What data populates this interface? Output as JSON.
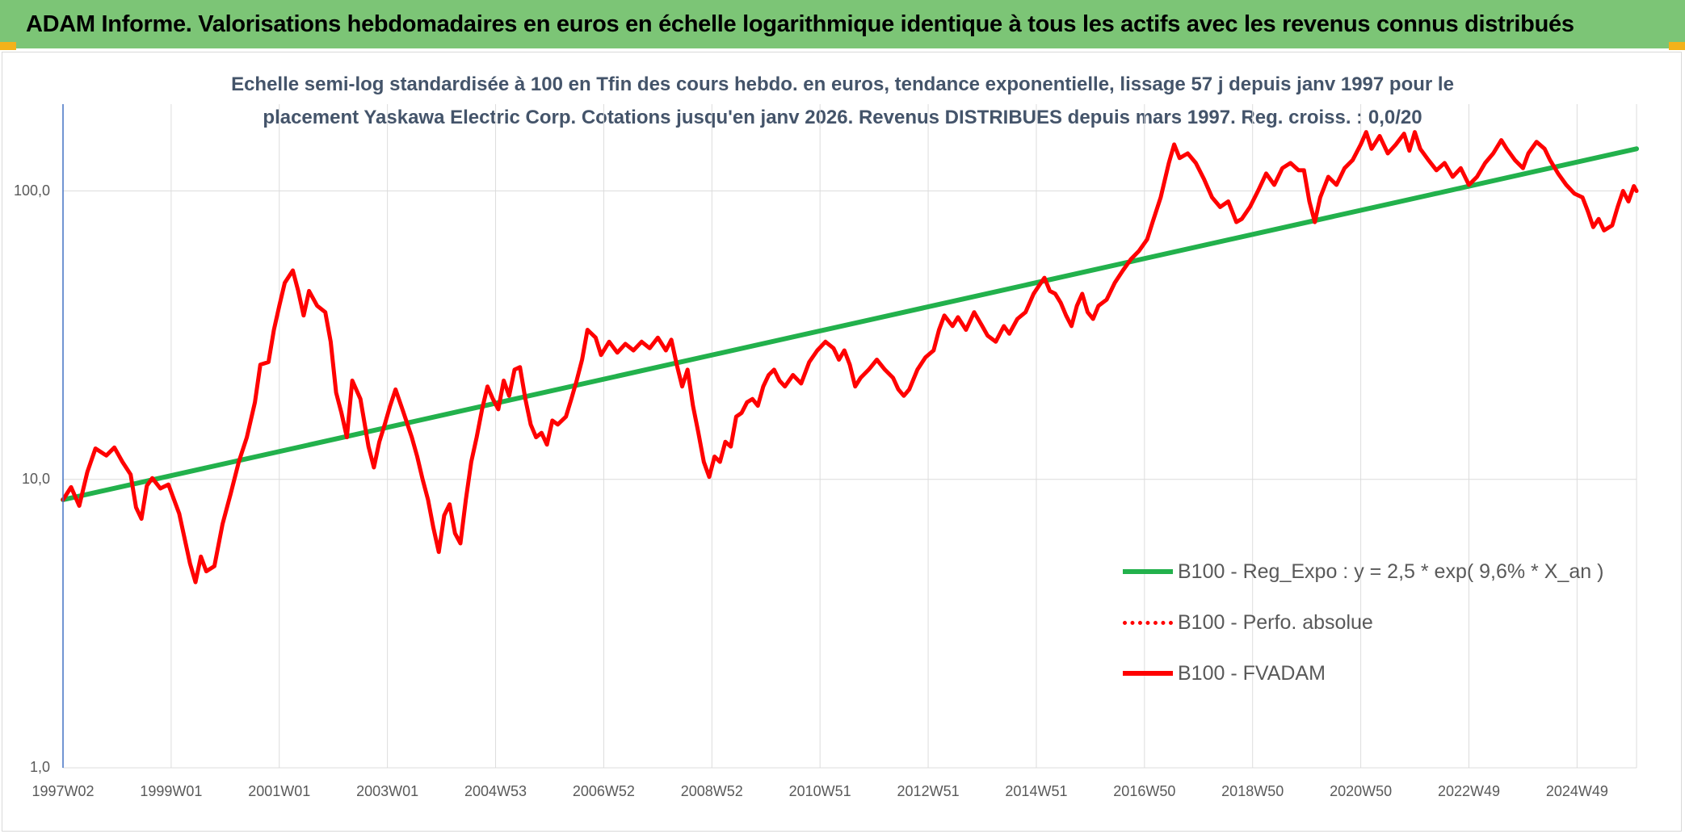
{
  "header": {
    "title": "ADAM Informe. Valorisations hebdomadaires en euros en échelle logarithmique identique à tous les actifs avec les revenus connus distribués"
  },
  "colors": {
    "banner": "#7cc576",
    "trend": "#22b14c",
    "series": "#ff0000",
    "corner": "#f3b21a"
  },
  "chart_data": {
    "type": "line",
    "title_lines": [
      "Echelle semi-log standardisée à 100 en Tfin des cours hebdo. en euros, tendance exponentielle, lissage 57 j depuis janv 1997 pour le",
      "placement Yaskawa Electric Corp. Cotations jusqu'en janv 2026. Revenus DISTRIBUES depuis mars 1997. Reg. croiss. : 0,0/20"
    ],
    "yscale": "log",
    "ylim": [
      1,
      200
    ],
    "yticks": [
      {
        "value": 1,
        "label": "1,0"
      },
      {
        "value": 10,
        "label": "10,0"
      },
      {
        "value": 100,
        "label": "100,0"
      }
    ],
    "xlim": [
      1997.0,
      2026.1
    ],
    "xticks": [
      {
        "x": 1997.0,
        "label": "1997W02"
      },
      {
        "x": 1999.0,
        "label": "1999W01"
      },
      {
        "x": 2001.0,
        "label": "2001W01"
      },
      {
        "x": 2003.0,
        "label": "2003W01"
      },
      {
        "x": 2005.0,
        "label": "2004W53"
      },
      {
        "x": 2007.0,
        "label": "2006W52"
      },
      {
        "x": 2009.0,
        "label": "2008W52"
      },
      {
        "x": 2011.0,
        "label": "2010W51"
      },
      {
        "x": 2013.0,
        "label": "2012W51"
      },
      {
        "x": 2015.0,
        "label": "2014W51"
      },
      {
        "x": 2017.0,
        "label": "2016W50"
      },
      {
        "x": 2019.0,
        "label": "2018W50"
      },
      {
        "x": 2021.0,
        "label": "2020W50"
      },
      {
        "x": 2023.0,
        "label": "2022W49"
      },
      {
        "x": 2025.0,
        "label": "2024W49"
      }
    ],
    "grid": true,
    "legend_position": "bottom-right",
    "series": [
      {
        "name": "B100 - Reg_Expo : y = 2,5 * exp( 9,6% *  X_an )",
        "style": "solid",
        "color": "#22b14c",
        "points": [
          [
            1997.0,
            8.5
          ],
          [
            2026.1,
            140
          ]
        ]
      },
      {
        "name": "B100 - Perfo. absolue",
        "style": "dotted",
        "color": "#ff0000",
        "points": []
      },
      {
        "name": "B100 - FVADAM",
        "style": "solid",
        "color": "#ff0000",
        "points": [
          [
            1997.0,
            8.5
          ],
          [
            1997.15,
            9.4
          ],
          [
            1997.3,
            8.1
          ],
          [
            1997.45,
            10.6
          ],
          [
            1997.6,
            12.8
          ],
          [
            1997.8,
            12.1
          ],
          [
            1997.95,
            12.9
          ],
          [
            1998.1,
            11.5
          ],
          [
            1998.25,
            10.4
          ],
          [
            1998.35,
            8.0
          ],
          [
            1998.45,
            7.3
          ],
          [
            1998.55,
            9.5
          ],
          [
            1998.65,
            10.1
          ],
          [
            1998.8,
            9.3
          ],
          [
            1998.95,
            9.6
          ],
          [
            1999.15,
            7.6
          ],
          [
            1999.35,
            5.1
          ],
          [
            1999.45,
            4.4
          ],
          [
            1999.55,
            5.4
          ],
          [
            1999.65,
            4.8
          ],
          [
            1999.8,
            5.0
          ],
          [
            1999.95,
            7.0
          ],
          [
            2000.1,
            8.9
          ],
          [
            2000.25,
            11.5
          ],
          [
            2000.4,
            14.0
          ],
          [
            2000.55,
            18.5
          ],
          [
            2000.65,
            25.0
          ],
          [
            2000.8,
            25.5
          ],
          [
            2000.9,
            33.0
          ],
          [
            2001.0,
            40.0
          ],
          [
            2001.1,
            48.0
          ],
          [
            2001.25,
            53.0
          ],
          [
            2001.35,
            45.0
          ],
          [
            2001.45,
            37.0
          ],
          [
            2001.55,
            45.0
          ],
          [
            2001.7,
            40.0
          ],
          [
            2001.85,
            38.0
          ],
          [
            2001.95,
            30.0
          ],
          [
            2002.05,
            20.0
          ],
          [
            2002.15,
            17.0
          ],
          [
            2002.25,
            14.0
          ],
          [
            2002.35,
            22.0
          ],
          [
            2002.5,
            19.0
          ],
          [
            2002.65,
            13.0
          ],
          [
            2002.75,
            11.0
          ],
          [
            2002.85,
            13.5
          ],
          [
            2002.95,
            15.5
          ],
          [
            2003.05,
            18.0
          ],
          [
            2003.15,
            20.5
          ],
          [
            2003.3,
            17.0
          ],
          [
            2003.45,
            14.0
          ],
          [
            2003.55,
            12.0
          ],
          [
            2003.65,
            10.0
          ],
          [
            2003.75,
            8.5
          ],
          [
            2003.85,
            6.8
          ],
          [
            2003.95,
            5.6
          ],
          [
            2004.05,
            7.5
          ],
          [
            2004.15,
            8.2
          ],
          [
            2004.25,
            6.5
          ],
          [
            2004.35,
            6.0
          ],
          [
            2004.45,
            8.5
          ],
          [
            2004.55,
            11.5
          ],
          [
            2004.65,
            14.0
          ],
          [
            2004.75,
            17.5
          ],
          [
            2004.85,
            21.0
          ],
          [
            2004.95,
            19.0
          ],
          [
            2005.05,
            17.5
          ],
          [
            2005.15,
            22.0
          ],
          [
            2005.25,
            19.5
          ],
          [
            2005.35,
            24.0
          ],
          [
            2005.45,
            24.5
          ],
          [
            2005.55,
            19.0
          ],
          [
            2005.65,
            15.5
          ],
          [
            2005.75,
            14.0
          ],
          [
            2005.85,
            14.5
          ],
          [
            2005.95,
            13.2
          ],
          [
            2006.05,
            16.0
          ],
          [
            2006.15,
            15.5
          ],
          [
            2006.3,
            16.5
          ],
          [
            2006.4,
            19.0
          ],
          [
            2006.5,
            22.0
          ],
          [
            2006.6,
            26.0
          ],
          [
            2006.7,
            33.0
          ],
          [
            2006.85,
            31.0
          ],
          [
            2006.95,
            27.0
          ],
          [
            2007.1,
            30.0
          ],
          [
            2007.25,
            27.5
          ],
          [
            2007.4,
            29.5
          ],
          [
            2007.55,
            28.0
          ],
          [
            2007.7,
            30.0
          ],
          [
            2007.85,
            28.5
          ],
          [
            2008.0,
            31.0
          ],
          [
            2008.15,
            28.0
          ],
          [
            2008.25,
            30.5
          ],
          [
            2008.35,
            25.0
          ],
          [
            2008.45,
            21.0
          ],
          [
            2008.55,
            24.0
          ],
          [
            2008.65,
            18.0
          ],
          [
            2008.75,
            14.5
          ],
          [
            2008.85,
            11.5
          ],
          [
            2008.95,
            10.2
          ],
          [
            2009.05,
            12.0
          ],
          [
            2009.15,
            11.5
          ],
          [
            2009.25,
            13.5
          ],
          [
            2009.35,
            13.0
          ],
          [
            2009.45,
            16.5
          ],
          [
            2009.55,
            17.0
          ],
          [
            2009.65,
            18.5
          ],
          [
            2009.75,
            19.0
          ],
          [
            2009.85,
            18.0
          ],
          [
            2009.95,
            21.0
          ],
          [
            2010.05,
            23.0
          ],
          [
            2010.15,
            24.0
          ],
          [
            2010.25,
            22.0
          ],
          [
            2010.35,
            21.0
          ],
          [
            2010.5,
            23.0
          ],
          [
            2010.65,
            21.5
          ],
          [
            2010.8,
            25.5
          ],
          [
            2010.95,
            28.0
          ],
          [
            2011.1,
            30.0
          ],
          [
            2011.25,
            28.5
          ],
          [
            2011.35,
            26.0
          ],
          [
            2011.45,
            28.0
          ],
          [
            2011.55,
            25.0
          ],
          [
            2011.65,
            21.0
          ],
          [
            2011.75,
            22.5
          ],
          [
            2011.9,
            24.0
          ],
          [
            2012.05,
            26.0
          ],
          [
            2012.2,
            24.0
          ],
          [
            2012.35,
            22.5
          ],
          [
            2012.45,
            20.5
          ],
          [
            2012.55,
            19.5
          ],
          [
            2012.65,
            20.5
          ],
          [
            2012.8,
            24.0
          ],
          [
            2012.95,
            26.5
          ],
          [
            2013.1,
            28.0
          ],
          [
            2013.2,
            33.0
          ],
          [
            2013.3,
            37.0
          ],
          [
            2013.45,
            34.0
          ],
          [
            2013.55,
            36.5
          ],
          [
            2013.7,
            33.0
          ],
          [
            2013.85,
            38.0
          ],
          [
            2014.0,
            34.0
          ],
          [
            2014.1,
            31.5
          ],
          [
            2014.25,
            30.0
          ],
          [
            2014.4,
            34.0
          ],
          [
            2014.5,
            32.0
          ],
          [
            2014.65,
            36.0
          ],
          [
            2014.8,
            38.0
          ],
          [
            2014.95,
            44.0
          ],
          [
            2015.05,
            47.0
          ],
          [
            2015.15,
            50.0
          ],
          [
            2015.25,
            45.0
          ],
          [
            2015.35,
            44.0
          ],
          [
            2015.45,
            41.0
          ],
          [
            2015.55,
            37.0
          ],
          [
            2015.65,
            34.0
          ],
          [
            2015.75,
            40.0
          ],
          [
            2015.85,
            44.0
          ],
          [
            2015.95,
            38.0
          ],
          [
            2016.05,
            36.0
          ],
          [
            2016.15,
            40.0
          ],
          [
            2016.3,
            42.0
          ],
          [
            2016.45,
            48.0
          ],
          [
            2016.6,
            53.0
          ],
          [
            2016.75,
            58.0
          ],
          [
            2016.9,
            62.0
          ],
          [
            2017.05,
            68.0
          ],
          [
            2017.15,
            78.0
          ],
          [
            2017.3,
            95.0
          ],
          [
            2017.45,
            125.0
          ],
          [
            2017.55,
            145.0
          ],
          [
            2017.65,
            130.0
          ],
          [
            2017.8,
            135.0
          ],
          [
            2017.95,
            125.0
          ],
          [
            2018.1,
            110.0
          ],
          [
            2018.25,
            95.0
          ],
          [
            2018.4,
            88.0
          ],
          [
            2018.55,
            92.0
          ],
          [
            2018.7,
            78.0
          ],
          [
            2018.8,
            80.0
          ],
          [
            2018.95,
            88.0
          ],
          [
            2019.1,
            100.0
          ],
          [
            2019.25,
            115.0
          ],
          [
            2019.4,
            105.0
          ],
          [
            2019.55,
            120.0
          ],
          [
            2019.7,
            125.0
          ],
          [
            2019.85,
            118.0
          ],
          [
            2019.95,
            118.0
          ],
          [
            2020.05,
            92.0
          ],
          [
            2020.15,
            78.0
          ],
          [
            2020.25,
            95.0
          ],
          [
            2020.4,
            112.0
          ],
          [
            2020.55,
            105.0
          ],
          [
            2020.7,
            120.0
          ],
          [
            2020.85,
            128.0
          ],
          [
            2021.0,
            145.0
          ],
          [
            2021.1,
            160.0
          ],
          [
            2021.2,
            140.0
          ],
          [
            2021.35,
            155.0
          ],
          [
            2021.5,
            135.0
          ],
          [
            2021.65,
            145.0
          ],
          [
            2021.8,
            158.0
          ],
          [
            2021.9,
            138.0
          ],
          [
            2022.0,
            160.0
          ],
          [
            2022.1,
            140.0
          ],
          [
            2022.25,
            128.0
          ],
          [
            2022.4,
            118.0
          ],
          [
            2022.55,
            125.0
          ],
          [
            2022.7,
            112.0
          ],
          [
            2022.85,
            120.0
          ],
          [
            2023.0,
            105.0
          ],
          [
            2023.15,
            112.0
          ],
          [
            2023.3,
            125.0
          ],
          [
            2023.45,
            135.0
          ],
          [
            2023.6,
            150.0
          ],
          [
            2023.7,
            140.0
          ],
          [
            2023.85,
            128.0
          ],
          [
            2024.0,
            120.0
          ],
          [
            2024.1,
            135.0
          ],
          [
            2024.25,
            148.0
          ],
          [
            2024.4,
            140.0
          ],
          [
            2024.5,
            128.0
          ],
          [
            2024.65,
            115.0
          ],
          [
            2024.8,
            105.0
          ],
          [
            2024.95,
            98.0
          ],
          [
            2025.1,
            95.0
          ],
          [
            2025.2,
            85.0
          ],
          [
            2025.3,
            75.0
          ],
          [
            2025.4,
            80.0
          ],
          [
            2025.5,
            73.0
          ],
          [
            2025.65,
            76.0
          ],
          [
            2025.75,
            88.0
          ],
          [
            2025.85,
            100.0
          ],
          [
            2025.95,
            92.0
          ],
          [
            2026.05,
            104.0
          ],
          [
            2026.1,
            100.0
          ]
        ]
      }
    ]
  }
}
